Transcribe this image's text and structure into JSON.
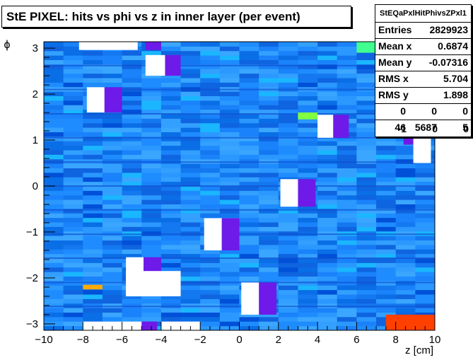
{
  "title": "StE PIXEL: hits vs phi vs z in inner layer (per event)",
  "stats": {
    "name": "StEQaPxlHitPhivsZPxl1",
    "rows": [
      {
        "label": "Entries",
        "value": "2829923"
      },
      {
        "label": "Mean x",
        "value": "0.6874"
      },
      {
        "label": "Mean y",
        "value": "-0.07316"
      },
      {
        "label": "RMS x",
        "value": "5.704"
      },
      {
        "label": "RMS y",
        "value": "1.898"
      }
    ],
    "grid": [
      [
        "0",
        "0",
        "0"
      ],
      [
        "46",
        "5687",
        "5"
      ],
      [
        "-1",
        "0",
        "0"
      ]
    ]
  },
  "chart_data": {
    "type": "heatmap",
    "title": "StE PIXEL: hits vs phi vs z in inner layer (per event)",
    "xlabel": "z [cm]",
    "ylabel": "ϕ",
    "xlim": [
      -10,
      10
    ],
    "ylim": [
      -3.14,
      3.14
    ],
    "x_ticks": [
      "−10",
      "−8",
      "−6",
      "−4",
      "−2",
      "0",
      "2",
      "4",
      "6",
      "8",
      "10"
    ],
    "y_ticks": [
      "−3",
      "−2",
      "−1",
      "0",
      "1",
      "2",
      "3"
    ],
    "dominant_color": "#1a8cff",
    "empty_regions": [
      {
        "z": [
          -8.2,
          -5.2
        ],
        "phi": [
          2.96,
          3.14
        ]
      },
      {
        "z": [
          -4.8,
          -3.8
        ],
        "phi": [
          2.4,
          2.85
        ]
      },
      {
        "z": [
          -7.8,
          -6.9
        ],
        "phi": [
          1.6,
          2.15
        ]
      },
      {
        "z": [
          4.0,
          4.8
        ],
        "phi": [
          1.05,
          1.55
        ]
      },
      {
        "z": [
          8.9,
          9.8
        ],
        "phi": [
          0.5,
          1.1
        ]
      },
      {
        "z": [
          2.1,
          3.0
        ],
        "phi": [
          -0.45,
          0.15
        ]
      },
      {
        "z": [
          -1.8,
          -0.9
        ],
        "phi": [
          -1.4,
          -0.7
        ]
      },
      {
        "z": [
          -5.8,
          -4.9
        ],
        "phi": [
          -2.4,
          -1.55
        ]
      },
      {
        "z": [
          -5.8,
          -3.0
        ],
        "phi": [
          -2.4,
          -1.85
        ]
      },
      {
        "z": [
          0.1,
          1.0
        ],
        "phi": [
          -2.8,
          -2.1
        ]
      },
      {
        "z": [
          -8.0,
          -5.0
        ],
        "phi": [
          -3.14,
          -2.95
        ]
      },
      {
        "z": [
          -4.0,
          -2.0
        ],
        "phi": [
          -3.14,
          -2.95
        ]
      }
    ],
    "dead_regions": [
      {
        "z": [
          -4.8,
          -4.0
        ],
        "phi": [
          2.96,
          3.14
        ]
      },
      {
        "z": [
          -3.8,
          -3.0
        ],
        "phi": [
          2.4,
          2.85
        ]
      },
      {
        "z": [
          -6.9,
          -6.0
        ],
        "phi": [
          1.6,
          2.15
        ]
      },
      {
        "z": [
          4.8,
          5.6
        ],
        "phi": [
          1.05,
          1.55
        ]
      },
      {
        "z": [
          3.0,
          3.9
        ],
        "phi": [
          -0.45,
          0.15
        ]
      },
      {
        "z": [
          -0.9,
          0.0
        ],
        "phi": [
          -1.4,
          -0.7
        ]
      },
      {
        "z": [
          -4.9,
          -4.0
        ],
        "phi": [
          -2.4,
          -1.55
        ]
      },
      {
        "z": [
          1.0,
          1.9
        ],
        "phi": [
          -2.8,
          -2.1
        ]
      },
      {
        "z": [
          -5.0,
          -4.2
        ],
        "phi": [
          -3.14,
          -2.95
        ]
      },
      {
        "z": [
          8.4,
          9.4
        ],
        "phi": [
          0.9,
          1.1
        ]
      }
    ],
    "hot_spots": [
      {
        "z": [
          7.5,
          10.0
        ],
        "phi": [
          -3.14,
          -2.8
        ],
        "color": "#ff4000"
      },
      {
        "z": [
          -8.0,
          -7.0
        ],
        "phi": [
          -2.25,
          -2.15
        ],
        "color": "#ffaa00"
      },
      {
        "z": [
          3.0,
          4.0
        ],
        "phi": [
          1.45,
          1.6
        ],
        "color": "#80ff40"
      },
      {
        "z": [
          6.0,
          8.0
        ],
        "phi": [
          2.9,
          3.14
        ],
        "color": "#40ff90"
      },
      {
        "z": [
          8.5,
          10.0
        ],
        "phi": [
          2.7,
          3.14
        ],
        "color": "#80ff20"
      }
    ]
  }
}
